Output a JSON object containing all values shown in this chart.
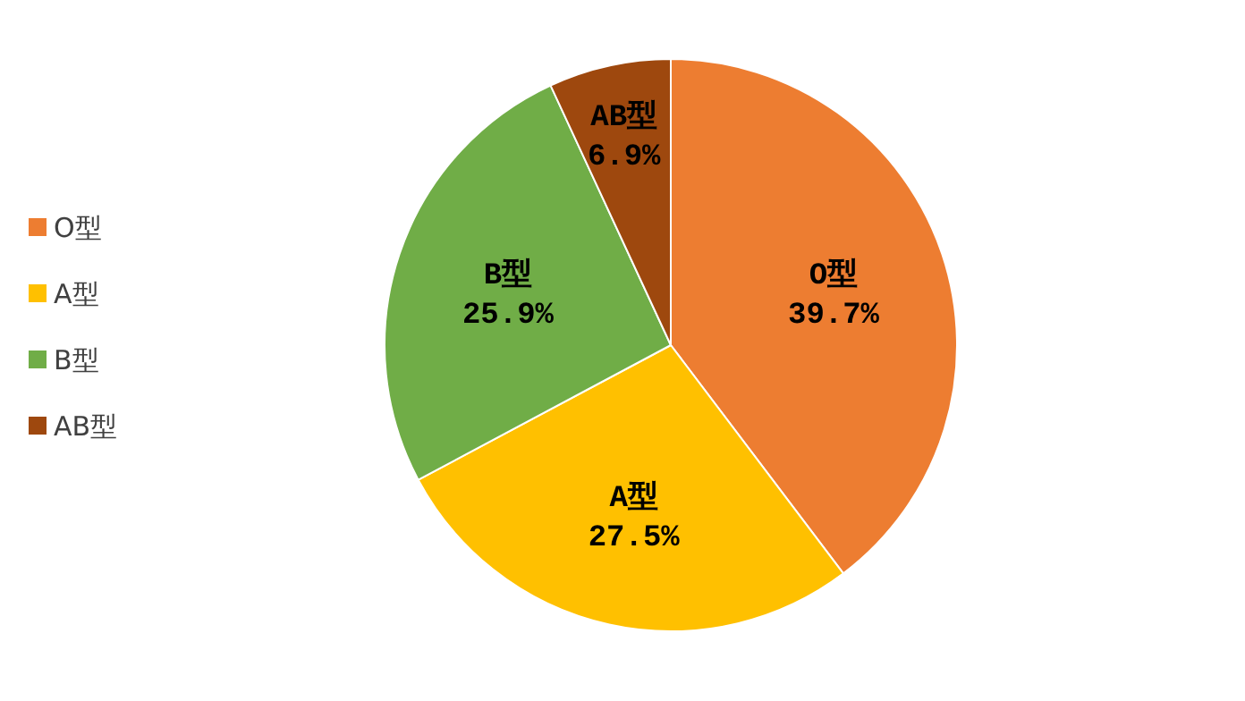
{
  "chart_data": {
    "type": "pie",
    "categories": [
      "O型",
      "A型",
      "B型",
      "AB型"
    ],
    "values": [
      39.7,
      27.5,
      25.9,
      6.9
    ],
    "value_labels": [
      "39.7%",
      "27.5%",
      "25.9%",
      "6.9%"
    ],
    "colors": [
      "#ed7d31",
      "#ffc000",
      "#70ad47",
      "#9e480e"
    ],
    "legend": "left"
  }
}
